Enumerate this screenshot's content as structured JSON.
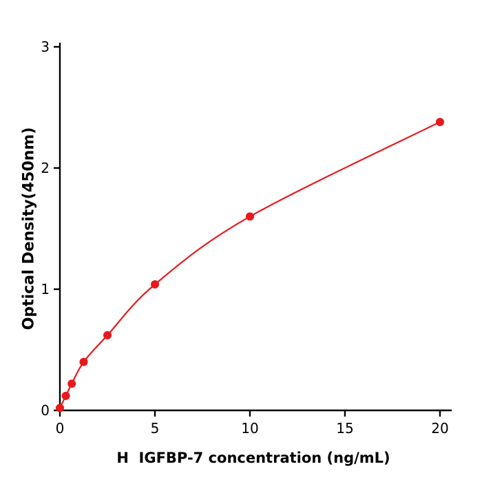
{
  "chart_data": {
    "type": "line",
    "title": "",
    "xlabel": "H  IGFBP-7 concentration (ng/mL)",
    "ylabel": "Optical Density(450nm)",
    "xlim": [
      0,
      20.4
    ],
    "ylim": [
      0,
      3
    ],
    "xticks": [
      0,
      5,
      10,
      15,
      20
    ],
    "yticks": [
      0,
      1,
      2,
      3
    ],
    "grid": false,
    "legend": "none",
    "line_color": "#e8191c",
    "marker_color": "#e8191c",
    "axis_color": "#000000",
    "x": [
      0,
      0.3125,
      0.625,
      1.25,
      2.5,
      5,
      10,
      20
    ],
    "y": [
      0.02,
      0.12,
      0.22,
      0.4,
      0.62,
      1.04,
      1.6,
      2.38
    ]
  }
}
